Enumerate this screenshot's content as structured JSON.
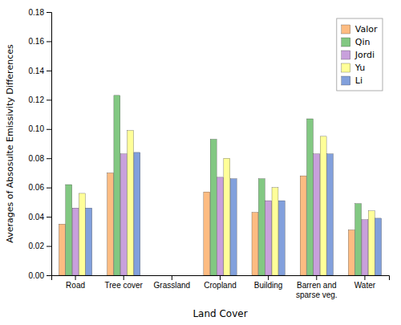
{
  "chart_data": {
    "type": "bar",
    "categories": [
      "Road",
      "Tree cover",
      "Grassland",
      "Cropland",
      "Building",
      "Barren and\nsparse veg.",
      "Water"
    ],
    "series": [
      {
        "name": "Valor",
        "color": "#FDBC82",
        "values": [
          0.035,
          0.07,
          0.0,
          0.057,
          0.043,
          0.068,
          0.031
        ]
      },
      {
        "name": "Qin",
        "color": "#82C882",
        "values": [
          0.062,
          0.123,
          0.0,
          0.093,
          0.066,
          0.107,
          0.049
        ]
      },
      {
        "name": "Jordi",
        "color": "#C8A0DC",
        "values": [
          0.046,
          0.083,
          0.0,
          0.067,
          0.051,
          0.083,
          0.038
        ]
      },
      {
        "name": "Yu",
        "color": "#FFFF99",
        "values": [
          0.056,
          0.099,
          0.0,
          0.08,
          0.06,
          0.095,
          0.044
        ]
      },
      {
        "name": "Li",
        "color": "#82A0DC",
        "values": [
          0.046,
          0.084,
          0.0,
          0.066,
          0.051,
          0.083,
          0.039
        ]
      }
    ],
    "xlabel": "Land Cover",
    "ylabel": "Averages of Absosulte Emissivity Differences",
    "ylim": [
      0.0,
      0.18
    ],
    "yticks": [
      {
        "value": 0.0,
        "label": "0.00"
      },
      {
        "value": 0.02,
        "label": "0.02"
      },
      {
        "value": 0.04,
        "label": "0.04"
      },
      {
        "value": 0.06,
        "label": "0.06"
      },
      {
        "value": 0.08,
        "label": "0.08"
      },
      {
        "value": 0.1,
        "label": "0.10"
      },
      {
        "value": 0.12,
        "label": "0.12"
      },
      {
        "value": 0.14,
        "label": "0.14"
      },
      {
        "value": 0.16,
        "label": "0.16"
      },
      {
        "value": 0.18,
        "label": "0.18"
      }
    ],
    "legend": "upper right",
    "grid": false
  }
}
